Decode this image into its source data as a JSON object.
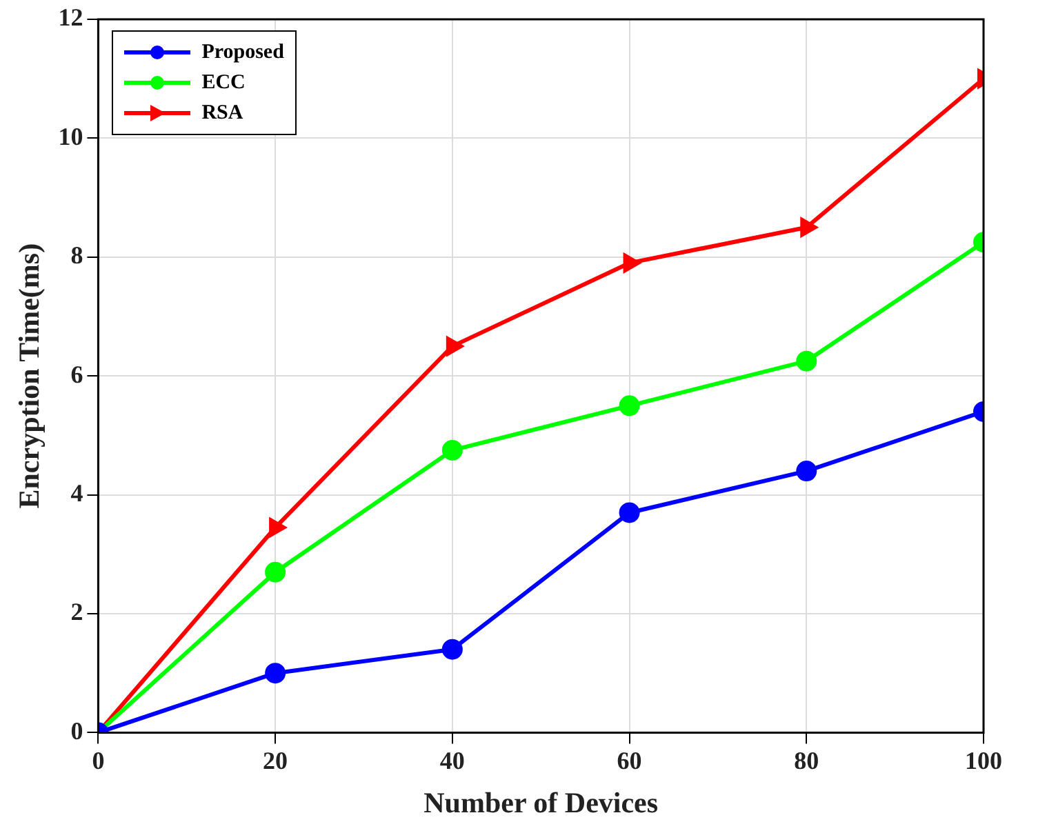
{
  "chart_data": {
    "type": "line",
    "xlabel": "Number of Devices",
    "ylabel": "Encryption Time(ms)",
    "x": [
      0,
      20,
      40,
      60,
      80,
      100
    ],
    "series": [
      {
        "name": "Proposed",
        "color": "#0000ff",
        "marker": "circle",
        "values": [
          0,
          1.0,
          1.4,
          3.7,
          4.4,
          5.4
        ]
      },
      {
        "name": "ECC",
        "color": "#00ff00",
        "marker": "circle",
        "values": [
          0,
          2.7,
          4.75,
          5.5,
          6.25,
          8.25
        ]
      },
      {
        "name": "RSA",
        "color": "#ff0000",
        "marker": "triangle",
        "values": [
          0,
          3.45,
          6.5,
          7.9,
          8.5,
          11.0
        ]
      }
    ],
    "xlim": [
      0,
      100
    ],
    "xticks": [
      0,
      20,
      40,
      60,
      80,
      100
    ],
    "ylim": [
      0,
      12
    ],
    "yticks": [
      0,
      2,
      4,
      6,
      8,
      10,
      12
    ],
    "grid": true,
    "legend": "top left",
    "line_style": "solid"
  }
}
